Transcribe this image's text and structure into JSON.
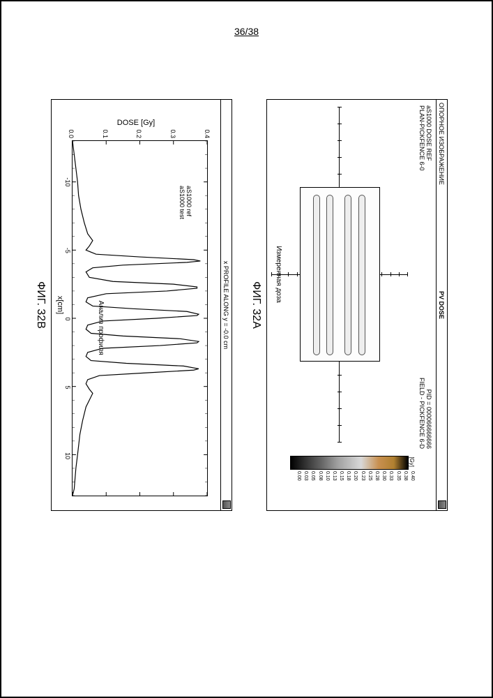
{
  "page_number": "36/38",
  "panelA": {
    "titlebar_left": "ОПОРНОЕ ИЗОБРАЖЕНИЕ",
    "titlebar_center": "PV DOSE",
    "header_left_line1": "aS1000 DOSE REF",
    "header_left_line2": "PLAN-PICKFENCE 6-0",
    "header_right_line1": "PID = 000066666666",
    "header_right_line2": "FIELD - PICKFENCE 6-D",
    "footer": "Измеренная доза",
    "fig_label": "ФИГ. 32A",
    "colorbar": {
      "unit": "[Gy]",
      "values": [
        "0.40",
        "0.38",
        "0.35",
        "0.33",
        "0.30",
        "0.28",
        "0.25",
        "0.23",
        "0.20",
        "0.18",
        "0.15",
        "0.13",
        "0.10",
        "0.08",
        "0.05",
        "0.03",
        "0.00"
      ],
      "gradient_stops": [
        {
          "p": 0,
          "c": "#000000"
        },
        {
          "p": 12,
          "c": "#b08030"
        },
        {
          "p": 25,
          "c": "#c89050"
        },
        {
          "p": 40,
          "c": "#d8d8d8"
        },
        {
          "p": 60,
          "c": "#a0a0a0"
        },
        {
          "p": 75,
          "c": "#606060"
        },
        {
          "p": 88,
          "c": "#303030"
        },
        {
          "p": 100,
          "c": "#000000"
        }
      ]
    },
    "pencil_positions_pct": [
      18,
      35,
      58,
      75
    ]
  },
  "panelB": {
    "titlebar": "x PROFILE ALONG y = -0.0 cm",
    "ylabel": "DOSE [Gy]",
    "xlabel": "x[cm]",
    "legend": [
      "aS1000 ref",
      "aS1000 test"
    ],
    "annotation": "Анализ профиля",
    "fig_label": "ФИГ. 32B",
    "ylim": [
      0.0,
      0.4
    ],
    "yticks": [
      0.0,
      0.1,
      0.2,
      0.3,
      0.4
    ],
    "xlim": [
      -13,
      13
    ],
    "xticks": [
      -10,
      -5,
      0,
      5,
      10
    ],
    "line_color": "#000000",
    "line_width": 1.2,
    "background_color": "#ffffff",
    "profile_points": [
      [
        -13,
        0.0
      ],
      [
        -12,
        0.005
      ],
      [
        -11,
        0.01
      ],
      [
        -10,
        0.015
      ],
      [
        -9,
        0.018
      ],
      [
        -8,
        0.025
      ],
      [
        -7,
        0.035
      ],
      [
        -6.2,
        0.045
      ],
      [
        -5.7,
        0.06
      ],
      [
        -5.3,
        0.05
      ],
      [
        -5.0,
        0.04
      ],
      [
        -4.7,
        0.07
      ],
      [
        -4.5,
        0.2
      ],
      [
        -4.3,
        0.36
      ],
      [
        -4.2,
        0.38
      ],
      [
        -4.1,
        0.34
      ],
      [
        -3.9,
        0.15
      ],
      [
        -3.7,
        0.06
      ],
      [
        -3.4,
        0.04
      ],
      [
        -3.0,
        0.05
      ],
      [
        -2.7,
        0.12
      ],
      [
        -2.5,
        0.3
      ],
      [
        -2.3,
        0.37
      ],
      [
        -2.2,
        0.37
      ],
      [
        -2.0,
        0.28
      ],
      [
        -1.8,
        0.1
      ],
      [
        -1.5,
        0.045
      ],
      [
        -1.2,
        0.04
      ],
      [
        -0.9,
        0.06
      ],
      [
        -0.7,
        0.18
      ],
      [
        -0.5,
        0.34
      ],
      [
        -0.3,
        0.375
      ],
      [
        -0.2,
        0.37
      ],
      [
        0.0,
        0.25
      ],
      [
        0.2,
        0.09
      ],
      [
        0.5,
        0.045
      ],
      [
        0.8,
        0.04
      ],
      [
        1.1,
        0.055
      ],
      [
        1.3,
        0.15
      ],
      [
        1.5,
        0.32
      ],
      [
        1.7,
        0.375
      ],
      [
        1.8,
        0.37
      ],
      [
        2.0,
        0.26
      ],
      [
        2.2,
        0.09
      ],
      [
        2.5,
        0.045
      ],
      [
        2.8,
        0.04
      ],
      [
        3.1,
        0.055
      ],
      [
        3.3,
        0.16
      ],
      [
        3.5,
        0.33
      ],
      [
        3.7,
        0.375
      ],
      [
        3.8,
        0.36
      ],
      [
        4.0,
        0.22
      ],
      [
        4.2,
        0.08
      ],
      [
        4.5,
        0.045
      ],
      [
        4.8,
        0.04
      ],
      [
        5.2,
        0.05
      ],
      [
        5.5,
        0.06
      ],
      [
        6.0,
        0.05
      ],
      [
        6.5,
        0.04
      ],
      [
        7.5,
        0.03
      ],
      [
        8.5,
        0.022
      ],
      [
        10,
        0.015
      ],
      [
        11,
        0.01
      ],
      [
        12.5,
        0.005
      ],
      [
        13,
        0.0
      ]
    ]
  }
}
